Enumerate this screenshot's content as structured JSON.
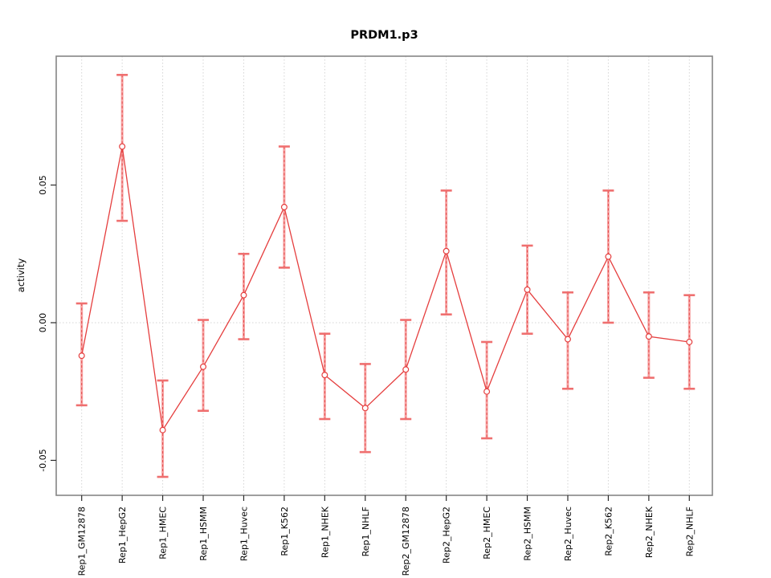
{
  "chart_data": {
    "type": "line",
    "title": "PRDM1.p3",
    "xlabel": "",
    "ylabel": "activity",
    "legend": "none",
    "point_style": "open-circle",
    "errorbars": true,
    "grid": {
      "vertical_per_category": true,
      "horizontal_at_zero": true,
      "style": "dotted"
    },
    "categories": [
      "Rep1_GM12878",
      "Rep1_HepG2",
      "Rep1_HMEC",
      "Rep1_HSMM",
      "Rep1_Huvec",
      "Rep1_K562",
      "Rep1_NHEK",
      "Rep1_NHLF",
      "Rep2_GM12878",
      "Rep2_HepG2",
      "Rep2_HMEC",
      "Rep2_HSMM",
      "Rep2_Huvec",
      "Rep2_K562",
      "Rep2_NHEK",
      "Rep2_NHLF"
    ],
    "series": [
      {
        "name": "activity",
        "values": [
          -0.012,
          0.064,
          -0.039,
          -0.016,
          0.01,
          0.042,
          -0.019,
          -0.031,
          -0.017,
          0.026,
          -0.025,
          0.012,
          -0.006,
          0.024,
          -0.005,
          -0.007
        ],
        "upper": [
          0.007,
          0.09,
          -0.021,
          0.001,
          0.025,
          0.064,
          -0.004,
          -0.015,
          0.001,
          0.048,
          -0.007,
          0.028,
          0.011,
          0.048,
          0.011,
          0.01
        ],
        "lower": [
          -0.03,
          0.037,
          -0.056,
          -0.032,
          -0.006,
          0.02,
          -0.035,
          -0.047,
          -0.035,
          0.003,
          -0.042,
          -0.004,
          -0.024,
          0.0,
          -0.02,
          -0.024
        ]
      }
    ],
    "yticks": {
      "values": [
        0.05,
        0.0,
        -0.05
      ],
      "labels": [
        "0.05",
        "0.00",
        "-0.05"
      ]
    },
    "ylim": [
      -0.0627,
      0.0968
    ],
    "colors": {
      "line": "#e53e3e",
      "error_bar_fill": "#f7a2a2",
      "error_bar_dash": "#e34d4d",
      "cap": "#ef6f6f",
      "grid": "#d4d4d4",
      "box_border": "#858585",
      "tick": "#2b2b2b",
      "text": "#000000",
      "background": "#ffffff"
    }
  }
}
